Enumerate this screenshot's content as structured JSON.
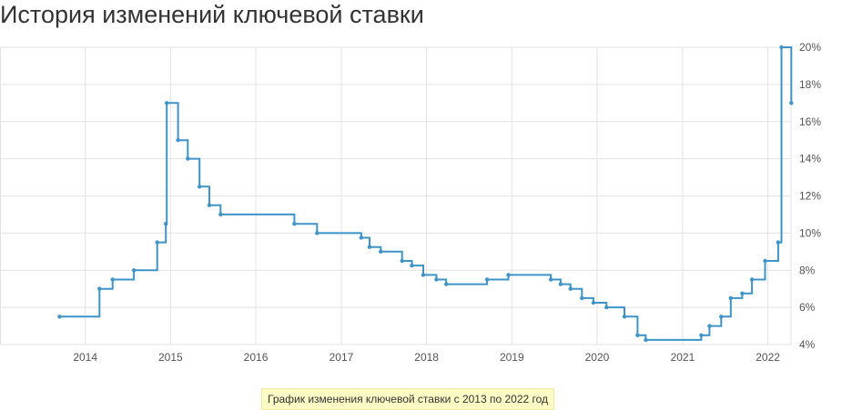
{
  "title": "История изменений ключевой ставки",
  "caption": "График изменения ключевой ставки с 2013 по 2022 год",
  "colors": {
    "series": "#3e93c9",
    "grid": "#e3e3e3",
    "text": "#555555",
    "caption_bg": "#fffbc4"
  },
  "chart_data": {
    "type": "line",
    "step": true,
    "title": "История изменений ключевой ставки",
    "xlabel": "",
    "ylabel": "",
    "xlim": [
      "2013-01-01",
      "2022-04-10"
    ],
    "ylim": [
      4,
      20
    ],
    "x_ticks": [
      "2014",
      "2015",
      "2016",
      "2017",
      "2018",
      "2019",
      "2020",
      "2021",
      "2022"
    ],
    "y_ticks": [
      "4%",
      "6%",
      "8%",
      "10%",
      "12%",
      "14%",
      "16%",
      "18%",
      "20%"
    ],
    "grid": true,
    "y_axis_position": "right",
    "series": [
      {
        "color": "#3e93c9",
        "points": [
          [
            "2013-09-13",
            5.5
          ],
          [
            "2014-03-03",
            7.0
          ],
          [
            "2014-04-28",
            7.5
          ],
          [
            "2014-07-28",
            8.0
          ],
          [
            "2014-11-05",
            9.5
          ],
          [
            "2014-12-12",
            10.5
          ],
          [
            "2014-12-16",
            17.0
          ],
          [
            "2015-02-02",
            15.0
          ],
          [
            "2015-03-16",
            14.0
          ],
          [
            "2015-05-05",
            12.5
          ],
          [
            "2015-06-16",
            11.5
          ],
          [
            "2015-08-03",
            11.0
          ],
          [
            "2016-06-14",
            10.5
          ],
          [
            "2016-09-19",
            10.0
          ],
          [
            "2017-03-27",
            9.75
          ],
          [
            "2017-05-02",
            9.25
          ],
          [
            "2017-06-19",
            9.0
          ],
          [
            "2017-09-18",
            8.5
          ],
          [
            "2017-10-30",
            8.25
          ],
          [
            "2017-12-18",
            7.75
          ],
          [
            "2018-02-12",
            7.5
          ],
          [
            "2018-03-26",
            7.25
          ],
          [
            "2018-09-17",
            7.5
          ],
          [
            "2018-12-17",
            7.75
          ],
          [
            "2019-06-17",
            7.5
          ],
          [
            "2019-07-29",
            7.25
          ],
          [
            "2019-09-09",
            7.0
          ],
          [
            "2019-10-28",
            6.5
          ],
          [
            "2019-12-16",
            6.25
          ],
          [
            "2020-02-10",
            6.0
          ],
          [
            "2020-04-27",
            5.5
          ],
          [
            "2020-06-22",
            4.5
          ],
          [
            "2020-07-27",
            4.25
          ],
          [
            "2021-03-22",
            4.5
          ],
          [
            "2021-04-26",
            5.0
          ],
          [
            "2021-06-15",
            5.5
          ],
          [
            "2021-07-26",
            6.5
          ],
          [
            "2021-09-13",
            6.75
          ],
          [
            "2021-10-25",
            7.5
          ],
          [
            "2021-12-20",
            8.5
          ],
          [
            "2022-02-14",
            9.5
          ],
          [
            "2022-02-28",
            20.0
          ],
          [
            "2022-04-11",
            17.0
          ]
        ]
      }
    ]
  }
}
